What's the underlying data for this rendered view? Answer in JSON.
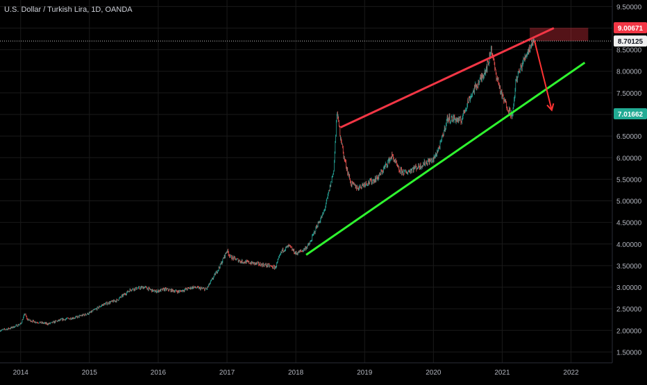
{
  "header": {
    "title": "U.S. Dollar / Turkish Lira, 1D, OANDA"
  },
  "chart_data": {
    "type": "line",
    "title": "U.S. Dollar / Turkish Lira, 1D, OANDA",
    "xlabel": "",
    "ylabel": "",
    "x_ticks": [
      "2014",
      "2015",
      "2016",
      "2017",
      "2018",
      "2019",
      "2020",
      "2021",
      "2022"
    ],
    "y_ticks": [
      "1.50000",
      "2.00000",
      "2.50000",
      "3.00000",
      "3.50000",
      "4.00000",
      "4.50000",
      "5.00000",
      "5.50000",
      "6.00000",
      "6.50000",
      "7.00000",
      "7.50000",
      "8.00000",
      "8.50000",
      "9.00000",
      "9.50000"
    ],
    "xlim": [
      2013.7,
      2022.6
    ],
    "ylim": [
      1.25,
      9.65
    ],
    "grid": true,
    "series": [
      {
        "x": [
          2013.7,
          2013.85,
          2014.0,
          2014.06,
          2014.1,
          2014.2,
          2014.4,
          2014.6,
          2014.8,
          2015.0,
          2015.2,
          2015.4,
          2015.6,
          2015.8,
          2015.95,
          2016.1,
          2016.3,
          2016.5,
          2016.7,
          2016.9,
          2017.0,
          2017.05,
          2017.2,
          2017.4,
          2017.6,
          2017.7,
          2017.8,
          2017.9,
          2018.0,
          2018.1,
          2018.2,
          2018.3,
          2018.4,
          2018.45,
          2018.55,
          2018.6,
          2018.62,
          2018.65,
          2018.7,
          2018.8,
          2018.9,
          2019.0,
          2019.1,
          2019.2,
          2019.3,
          2019.4,
          2019.5,
          2019.6,
          2019.7,
          2019.8,
          2019.9,
          2020.0,
          2020.1,
          2020.2,
          2020.3,
          2020.4,
          2020.5,
          2020.6,
          2020.7,
          2020.8,
          2020.84,
          2020.9,
          2020.95,
          2021.0,
          2021.1,
          2021.15,
          2021.2,
          2021.3,
          2021.35,
          2021.4,
          2021.45,
          2021.49
        ],
        "values": [
          2.0,
          2.05,
          2.15,
          2.38,
          2.25,
          2.2,
          2.15,
          2.25,
          2.3,
          2.4,
          2.6,
          2.7,
          2.95,
          3.0,
          2.9,
          2.95,
          2.9,
          3.0,
          2.95,
          3.5,
          3.85,
          3.7,
          3.6,
          3.55,
          3.5,
          3.45,
          3.85,
          3.95,
          3.78,
          3.85,
          4.0,
          4.4,
          4.7,
          5.0,
          5.7,
          7.1,
          6.8,
          6.5,
          6.0,
          5.4,
          5.3,
          5.4,
          5.45,
          5.55,
          5.8,
          6.05,
          5.7,
          5.65,
          5.75,
          5.8,
          5.9,
          5.95,
          6.3,
          6.9,
          6.9,
          6.85,
          7.3,
          7.6,
          7.85,
          8.2,
          8.55,
          8.0,
          7.7,
          7.4,
          7.1,
          6.95,
          7.8,
          8.2,
          8.4,
          8.55,
          8.7,
          8.70125
        ]
      }
    ],
    "annotations": {
      "resistance_line": {
        "from": [
          2018.65,
          6.7
        ],
        "to": [
          2021.75,
          9.0
        ],
        "color": "#f23645"
      },
      "support_line": {
        "from": [
          2018.15,
          3.75
        ],
        "to": [
          2022.2,
          8.2
        ],
        "color": "#2ff52f"
      },
      "stop_zone": {
        "x_from": 2021.4,
        "x_to": 2022.25,
        "y_from": 8.70125,
        "y_to": 9.00671,
        "color": "#f23645"
      },
      "target_zone": {
        "x_from": 2021.4,
        "x_to": 2022.25,
        "y_from": 7.01662,
        "y_to": 8.70125,
        "color": "#089981"
      },
      "arrow": {
        "from": [
          2021.47,
          8.7
        ],
        "to": [
          2021.72,
          7.1
        ],
        "color": "#ff3333"
      }
    },
    "price_labels": [
      {
        "value": 9.00671,
        "text": "9.00671",
        "bg": "#f23645",
        "fg": "#ffffff"
      },
      {
        "value": 8.70125,
        "text": "8.70125",
        "bg": "#f0f0f0",
        "fg": "#131722"
      },
      {
        "value": 7.01662,
        "text": "7.01662",
        "bg": "#22ab94",
        "fg": "#ffffff"
      }
    ],
    "colors": {
      "background": "#000000",
      "grid": "#1a1a1a",
      "axis_text": "#b2b5be",
      "up": "#26a69a",
      "down": "#ef5350"
    }
  }
}
